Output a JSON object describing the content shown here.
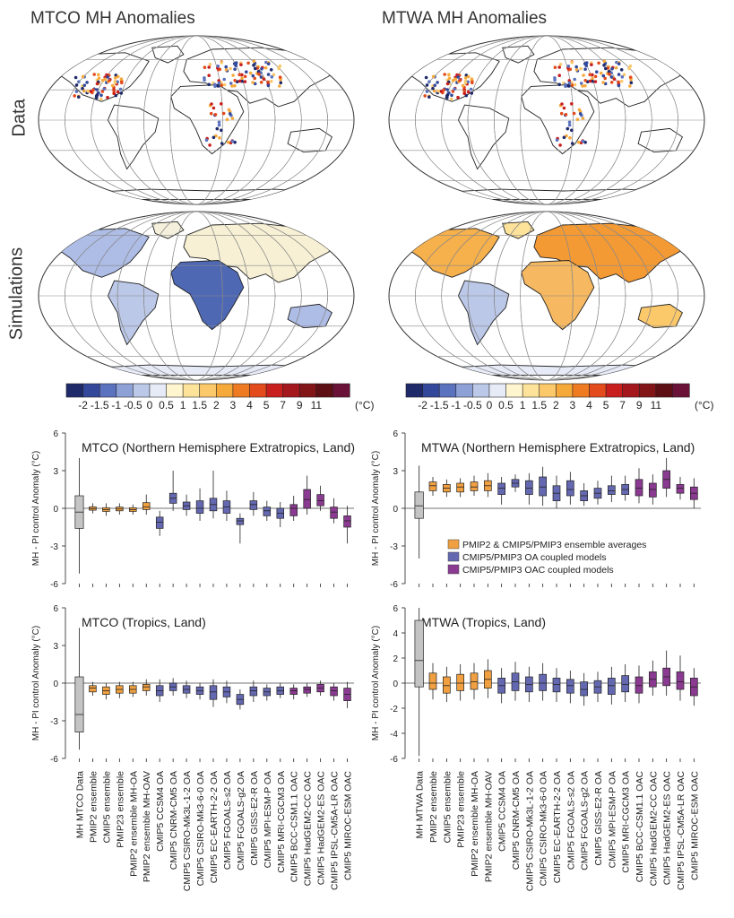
{
  "maps": {
    "title_left": "MTCO MH Anomalies",
    "title_right": "MTWA MH Anomalies",
    "row_data": "Data",
    "row_sim": "Simulations"
  },
  "colorbar": {
    "labels": [
      "-2",
      "-1.5",
      "-1",
      "-0.5",
      "0",
      "0.5",
      "1",
      "1.5",
      "2",
      "3",
      "4",
      "5",
      "7",
      "9",
      "11"
    ],
    "unit": "(°C)",
    "colors": [
      "#1f2a6b",
      "#33489b",
      "#5b73bf",
      "#8ea1d6",
      "#bcc8e8",
      "#e6ebf7",
      "#fff6cf",
      "#fde29a",
      "#fbc86a",
      "#f6a93b",
      "#ee7a22",
      "#e34a1c",
      "#c81f1e",
      "#a4171c",
      "#821518",
      "#5e0f14",
      "#6b1238"
    ]
  },
  "chart_data": [
    {
      "type": "box",
      "title": "MTCO (Northern Hemisphere Extratropics, Land)",
      "ylabel": "MH - PI control Anomaly (°C)",
      "ylim": [
        -6,
        6
      ],
      "yticks": [
        -6,
        -3,
        0,
        3,
        6
      ],
      "boxes": [
        {
          "q1": -1.6,
          "med": -0.3,
          "q3": 1.0,
          "lo": -5.2,
          "hi": 4.0,
          "group": "data"
        },
        {
          "q1": -0.15,
          "med": -0.02,
          "q3": 0.12,
          "lo": -0.4,
          "hi": 0.4,
          "group": "ens"
        },
        {
          "q1": -0.25,
          "med": -0.1,
          "q3": 0.05,
          "lo": -0.6,
          "hi": 0.4,
          "group": "ens"
        },
        {
          "q1": -0.2,
          "med": -0.05,
          "q3": 0.1,
          "lo": -0.5,
          "hi": 0.4,
          "group": "ens"
        },
        {
          "q1": -0.25,
          "med": -0.1,
          "q3": 0.05,
          "lo": -0.5,
          "hi": 0.3,
          "group": "ens"
        },
        {
          "q1": -0.1,
          "med": 0.1,
          "q3": 0.45,
          "lo": -0.5,
          "hi": 1.1,
          "group": "ens"
        },
        {
          "q1": -1.6,
          "med": -1.1,
          "q3": -0.7,
          "lo": -2.2,
          "hi": -0.2,
          "group": "oa"
        },
        {
          "q1": 0.4,
          "med": 0.8,
          "q3": 1.2,
          "lo": -0.2,
          "hi": 3.0,
          "group": "oa"
        },
        {
          "q1": -0.1,
          "med": 0.2,
          "q3": 0.5,
          "lo": -0.6,
          "hi": 1.1,
          "group": "oa"
        },
        {
          "q1": -0.4,
          "med": 0.0,
          "q3": 0.6,
          "lo": -1.0,
          "hi": 1.6,
          "group": "oa"
        },
        {
          "q1": -0.2,
          "med": 0.3,
          "q3": 0.8,
          "lo": -0.8,
          "hi": 3.0,
          "group": "oa"
        },
        {
          "q1": -0.4,
          "med": 0.1,
          "q3": 0.6,
          "lo": -1.0,
          "hi": 1.4,
          "group": "oa"
        },
        {
          "q1": -1.3,
          "med": -1.0,
          "q3": -0.8,
          "lo": -2.8,
          "hi": -0.4,
          "group": "oa"
        },
        {
          "q1": -0.1,
          "med": 0.3,
          "q3": 0.6,
          "lo": -0.6,
          "hi": 1.3,
          "group": "oa"
        },
        {
          "q1": -0.6,
          "med": -0.2,
          "q3": 0.1,
          "lo": -1.0,
          "hi": 0.6,
          "group": "oa"
        },
        {
          "q1": -0.8,
          "med": -0.4,
          "q3": 0.0,
          "lo": -1.5,
          "hi": 0.5,
          "group": "oa"
        },
        {
          "q1": -0.6,
          "med": 0.0,
          "q3": 0.3,
          "lo": -1.0,
          "hi": 1.0,
          "group": "oac"
        },
        {
          "q1": 0.0,
          "med": 0.7,
          "q3": 1.5,
          "lo": -0.5,
          "hi": 2.6,
          "group": "oac"
        },
        {
          "q1": 0.2,
          "med": 0.6,
          "q3": 1.1,
          "lo": -0.2,
          "hi": 1.8,
          "group": "oac"
        },
        {
          "q1": -0.8,
          "med": -0.3,
          "q3": 0.1,
          "lo": -1.2,
          "hi": 0.8,
          "group": "oac"
        },
        {
          "q1": -1.5,
          "med": -1.0,
          "q3": -0.6,
          "lo": -2.8,
          "hi": 0.2,
          "group": "oac"
        }
      ]
    },
    {
      "type": "box",
      "title": "MTWA (Northern Hemisphere Extratropics, Land)",
      "ylabel": "MH - PI control Anomaly (°C)",
      "ylim": [
        -6,
        6
      ],
      "yticks": [
        -6,
        -3,
        0,
        3,
        6
      ],
      "boxes": [
        {
          "q1": -0.8,
          "med": 0.2,
          "q3": 1.3,
          "lo": -4.0,
          "hi": 3.4,
          "group": "data"
        },
        {
          "q1": 1.4,
          "med": 1.8,
          "q3": 2.1,
          "lo": 1.0,
          "hi": 2.5,
          "group": "ens"
        },
        {
          "q1": 1.3,
          "med": 1.6,
          "q3": 1.9,
          "lo": 0.9,
          "hi": 2.3,
          "group": "ens"
        },
        {
          "q1": 1.3,
          "med": 1.7,
          "q3": 2.0,
          "lo": 0.9,
          "hi": 2.4,
          "group": "ens"
        },
        {
          "q1": 1.4,
          "med": 1.7,
          "q3": 2.1,
          "lo": 1.0,
          "hi": 2.6,
          "group": "ens"
        },
        {
          "q1": 1.4,
          "med": 1.8,
          "q3": 2.2,
          "lo": 0.9,
          "hi": 2.8,
          "group": "ens"
        },
        {
          "q1": 1.1,
          "med": 1.6,
          "q3": 2.0,
          "lo": 0.3,
          "hi": 2.5,
          "group": "oa"
        },
        {
          "q1": 1.7,
          "med": 2.0,
          "q3": 2.3,
          "lo": 1.3,
          "hi": 2.7,
          "group": "oa"
        },
        {
          "q1": 1.1,
          "med": 1.6,
          "q3": 2.2,
          "lo": 0.3,
          "hi": 2.8,
          "group": "oa"
        },
        {
          "q1": 1.0,
          "med": 1.7,
          "q3": 2.5,
          "lo": 0.2,
          "hi": 3.3,
          "group": "oa"
        },
        {
          "q1": 0.6,
          "med": 1.2,
          "q3": 1.8,
          "lo": 0.0,
          "hi": 2.6,
          "group": "oa"
        },
        {
          "q1": 1.0,
          "med": 1.5,
          "q3": 2.2,
          "lo": 0.3,
          "hi": 2.9,
          "group": "oa"
        },
        {
          "q1": 0.6,
          "med": 1.0,
          "q3": 1.4,
          "lo": 0.2,
          "hi": 2.0,
          "group": "oa"
        },
        {
          "q1": 0.8,
          "med": 1.2,
          "q3": 1.6,
          "lo": 0.3,
          "hi": 2.2,
          "group": "oa"
        },
        {
          "q1": 1.1,
          "med": 1.4,
          "q3": 1.8,
          "lo": 0.5,
          "hi": 2.6,
          "group": "oa"
        },
        {
          "q1": 1.1,
          "med": 1.5,
          "q3": 1.9,
          "lo": 0.6,
          "hi": 2.6,
          "group": "oa"
        },
        {
          "q1": 1.0,
          "med": 1.6,
          "q3": 2.3,
          "lo": 0.4,
          "hi": 3.2,
          "group": "oac"
        },
        {
          "q1": 0.9,
          "med": 1.5,
          "q3": 2.0,
          "lo": 0.3,
          "hi": 2.7,
          "group": "oac"
        },
        {
          "q1": 1.6,
          "med": 2.3,
          "q3": 3.0,
          "lo": 0.9,
          "hi": 4.0,
          "group": "oac"
        },
        {
          "q1": 1.2,
          "med": 1.6,
          "q3": 1.9,
          "lo": 0.7,
          "hi": 2.5,
          "group": "oac"
        },
        {
          "q1": 0.7,
          "med": 1.2,
          "q3": 1.7,
          "lo": 0.0,
          "hi": 2.4,
          "group": "oac"
        }
      ]
    },
    {
      "type": "box",
      "title": "MTCO (Tropics, Land)",
      "ylabel": "MH - PI control Anomaly (°C)",
      "ylim": [
        -6,
        6
      ],
      "yticks": [
        -6,
        -3,
        0,
        3,
        6
      ],
      "boxes": [
        {
          "q1": -3.9,
          "med": -2.5,
          "q3": 0.5,
          "lo": -5.3,
          "hi": 4.4,
          "group": "data"
        },
        {
          "q1": -0.7,
          "med": -0.4,
          "q3": -0.2,
          "lo": -1.0,
          "hi": 0.1,
          "group": "ens"
        },
        {
          "q1": -0.9,
          "med": -0.6,
          "q3": -0.3,
          "lo": -1.3,
          "hi": 0.0,
          "group": "ens"
        },
        {
          "q1": -0.8,
          "med": -0.5,
          "q3": -0.2,
          "lo": -1.2,
          "hi": 0.1,
          "group": "ens"
        },
        {
          "q1": -0.8,
          "med": -0.5,
          "q3": -0.2,
          "lo": -1.1,
          "hi": 0.1,
          "group": "ens"
        },
        {
          "q1": -0.6,
          "med": -0.3,
          "q3": -0.1,
          "lo": -1.0,
          "hi": 0.3,
          "group": "ens"
        },
        {
          "q1": -1.0,
          "med": -0.6,
          "q3": -0.2,
          "lo": -1.5,
          "hi": 0.3,
          "group": "oa"
        },
        {
          "q1": -0.6,
          "med": -0.3,
          "q3": 0.0,
          "lo": -1.0,
          "hi": 0.4,
          "group": "oa"
        },
        {
          "q1": -0.8,
          "med": -0.5,
          "q3": -0.2,
          "lo": -1.2,
          "hi": 0.2,
          "group": "oa"
        },
        {
          "q1": -0.9,
          "med": -0.6,
          "q3": -0.3,
          "lo": -1.3,
          "hi": 0.0,
          "group": "oa"
        },
        {
          "q1": -1.3,
          "med": -0.7,
          "q3": -0.2,
          "lo": -1.9,
          "hi": 0.3,
          "group": "oa"
        },
        {
          "q1": -1.1,
          "med": -0.7,
          "q3": -0.3,
          "lo": -1.6,
          "hi": 0.2,
          "group": "oa"
        },
        {
          "q1": -1.7,
          "med": -1.3,
          "q3": -0.9,
          "lo": -2.1,
          "hi": -0.5,
          "group": "oa"
        },
        {
          "q1": -1.0,
          "med": -0.6,
          "q3": -0.3,
          "lo": -1.5,
          "hi": 0.2,
          "group": "oa"
        },
        {
          "q1": -1.0,
          "med": -0.7,
          "q3": -0.4,
          "lo": -1.4,
          "hi": -0.1,
          "group": "oa"
        },
        {
          "q1": -0.9,
          "med": -0.6,
          "q3": -0.3,
          "lo": -1.2,
          "hi": 0.0,
          "group": "oa"
        },
        {
          "q1": -0.9,
          "med": -0.6,
          "q3": -0.4,
          "lo": -1.3,
          "hi": -0.1,
          "group": "oac"
        },
        {
          "q1": -0.8,
          "med": -0.5,
          "q3": -0.3,
          "lo": -1.1,
          "hi": 0.0,
          "group": "oac"
        },
        {
          "q1": -0.7,
          "med": -0.4,
          "q3": -0.1,
          "lo": -1.0,
          "hi": 0.2,
          "group": "oac"
        },
        {
          "q1": -1.0,
          "med": -0.6,
          "q3": -0.3,
          "lo": -1.4,
          "hi": 0.0,
          "group": "oac"
        },
        {
          "q1": -1.4,
          "med": -0.9,
          "q3": -0.4,
          "lo": -2.0,
          "hi": 0.1,
          "group": "oac"
        }
      ]
    },
    {
      "type": "box",
      "title": "MTWA (Tropics, Land)",
      "ylabel": "MH - PI control Anomaly (°C)",
      "ylim": [
        -6,
        6
      ],
      "yticks": [
        -6,
        -4,
        -2,
        0,
        2,
        4,
        6
      ],
      "boxes": [
        {
          "q1": -0.3,
          "med": 1.8,
          "q3": 5.0,
          "lo": -5.8,
          "hi": 6.0,
          "group": "data"
        },
        {
          "q1": -0.5,
          "med": 0.0,
          "q3": 0.8,
          "lo": -1.3,
          "hi": 1.6,
          "group": "ens"
        },
        {
          "q1": -0.8,
          "med": -0.2,
          "q3": 0.5,
          "lo": -1.5,
          "hi": 1.3,
          "group": "ens"
        },
        {
          "q1": -0.6,
          "med": 0.0,
          "q3": 0.7,
          "lo": -1.4,
          "hi": 1.5,
          "group": "ens"
        },
        {
          "q1": -0.5,
          "med": 0.1,
          "q3": 0.8,
          "lo": -1.3,
          "hi": 1.6,
          "group": "ens"
        },
        {
          "q1": -0.4,
          "med": 0.3,
          "q3": 1.0,
          "lo": -1.2,
          "hi": 1.9,
          "group": "ens"
        },
        {
          "q1": -0.8,
          "med": -0.2,
          "q3": 0.4,
          "lo": -1.6,
          "hi": 1.2,
          "group": "oa"
        },
        {
          "q1": -0.6,
          "med": 0.1,
          "q3": 0.8,
          "lo": -1.4,
          "hi": 1.7,
          "group": "oa"
        },
        {
          "q1": -0.7,
          "med": -0.1,
          "q3": 0.5,
          "lo": -1.5,
          "hi": 1.3,
          "group": "oa"
        },
        {
          "q1": -0.6,
          "med": 0.0,
          "q3": 0.7,
          "lo": -1.4,
          "hi": 1.6,
          "group": "oa"
        },
        {
          "q1": -0.7,
          "med": -0.1,
          "q3": 0.4,
          "lo": -1.5,
          "hi": 1.2,
          "group": "oa"
        },
        {
          "q1": -0.8,
          "med": -0.2,
          "q3": 0.3,
          "lo": -1.6,
          "hi": 1.0,
          "group": "oa"
        },
        {
          "q1": -1.0,
          "med": -0.5,
          "q3": 0.1,
          "lo": -1.8,
          "hi": 0.8,
          "group": "oa"
        },
        {
          "q1": -0.8,
          "med": -0.3,
          "q3": 0.2,
          "lo": -1.5,
          "hi": 0.9,
          "group": "oa"
        },
        {
          "q1": -0.9,
          "med": -0.2,
          "q3": 0.4,
          "lo": -1.7,
          "hi": 1.3,
          "group": "oa"
        },
        {
          "q1": -0.7,
          "med": -0.1,
          "q3": 0.6,
          "lo": -1.5,
          "hi": 1.5,
          "group": "oa"
        },
        {
          "q1": -0.8,
          "med": -0.2,
          "q3": 0.5,
          "lo": -1.6,
          "hi": 1.4,
          "group": "oac"
        },
        {
          "q1": -0.3,
          "med": 0.3,
          "q3": 0.9,
          "lo": -1.0,
          "hi": 1.8,
          "group": "oac"
        },
        {
          "q1": -0.2,
          "med": 0.5,
          "q3": 1.2,
          "lo": -1.0,
          "hi": 2.6,
          "group": "oac"
        },
        {
          "q1": -0.5,
          "med": 0.1,
          "q3": 0.9,
          "lo": -1.4,
          "hi": 2.2,
          "group": "oac"
        },
        {
          "q1": -1.0,
          "med": -0.3,
          "q3": 0.4,
          "lo": -1.8,
          "hi": 1.2,
          "group": "oac"
        }
      ]
    }
  ],
  "legend": {
    "ens": "PMIP2 & CMIP5/PMIP3 ensemble averages",
    "oa": "CMIP5/PMIP3 OA coupled models",
    "oac": "CMIP5/PMIP3 OAC coupled models"
  },
  "group_colors": {
    "data": "#c4c4c4",
    "ens": "#f0a040",
    "oa": "#6468b0",
    "oac": "#8a3a90"
  },
  "categories_left": [
    "MH  MTCO Data",
    "PMIP2 ensemble",
    "CMIP5 ensemble",
    "PMIP23 ensemble",
    "PMIP2 ensemble MH-OA",
    "PMIP2 ensemble MH-OAV",
    "CMIP5 CCSM4 OA",
    "CMIP5 CNRM-CM5 OA",
    "CMIP5 CSIRO-Mk3L-1-2 OA",
    "CMIP5 CSIRO-Mk3-6-0 OA",
    "CMIP5 EC-EARTH-2-2 OA",
    "CMIP5 FGOALS-s2 OA",
    "CMIP5 FGOALS-g2 OA",
    "CMIP5 GISS-E2-R OA",
    "CMIP5 MPI-ESM-P OA",
    "CMIP5 MRI-CGCM3 OA",
    "CMIP5 BCC-CSM1.1 OAC",
    "CMIP5 HadGEM2-CC OAC",
    "CMIP5 HadGEM2-ES OAC",
    "CMIP5 IPSL-CM5A-LR OAC",
    "CMIP5 MIROC-ESM OAC"
  ],
  "categories_right": [
    "MH MTWA Data",
    "PMIP2 ensemble",
    "CMIP5 ensemble",
    "PMIP23 ensemble",
    "PMIP2 ensemble MH-OA",
    "PMIP2 ensemble MH-OAV",
    "CMIP5 CCSM4 OA",
    "CMIP5 CNRM-CM5 OA",
    "CMIP5 CSIRO-Mk3L-1-2 OA",
    "CMIP5 CSIRO-Mk3-6-0 OA",
    "CMIP5 EC-EARTH-2-2 OA",
    "CMIP5 FGOALS-s2 OA",
    "CMIP5 FGOALS-g2 OA",
    "CMIP5 GISS-E2-R OA",
    "CMIP5 MPI-ESM-P OA",
    "CMIP5 MRI-CGCM3 OA",
    "CMIP5 BCC-CSM1.1 OAC",
    "CMIP5 HadGEM2-CC OAC",
    "CMIP5 HadGEM2-ES OAC",
    "CMIP5 IPSL-CM5A-LR OAC",
    "CMIP5 MIROC-ESM OAC"
  ]
}
